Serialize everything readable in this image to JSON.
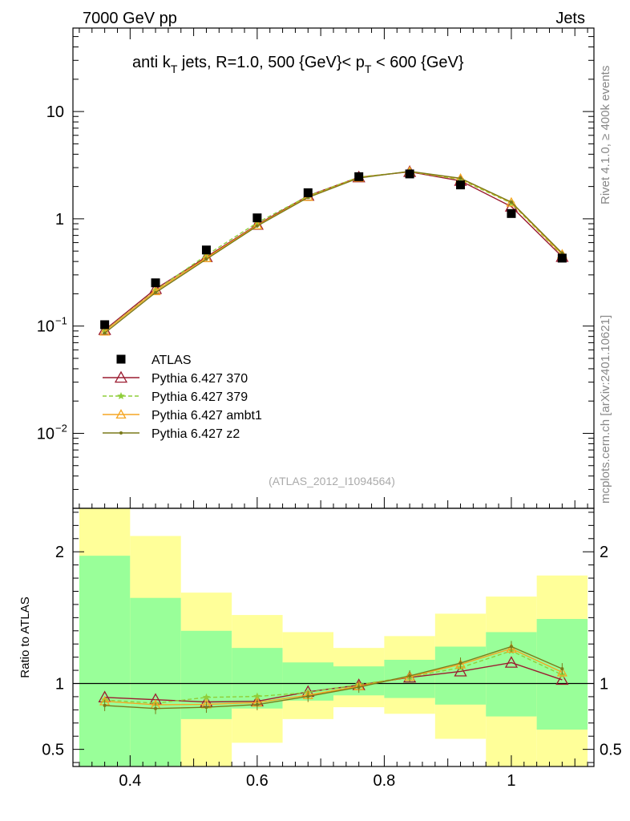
{
  "header": {
    "left": "7000 GeV pp",
    "right": "Jets"
  },
  "title": {
    "main": "anti k",
    "main_sub": "T",
    "mid": " jets, R=1.0,  500 {GeV}< p",
    "mid_sub": "T",
    "tail": " < 600 {GeV}"
  },
  "side_text": {
    "rivet": "Rivet 4.1.0, ≥ 400k events",
    "mcplots": "mcplots.cern.ch [arXiv:2401.10621]"
  },
  "analysis_label": "(ATLAS_2012_I1094564)",
  "colors": {
    "atlas": "#000000",
    "p370": "#9b1b30",
    "p379": "#8fce3a",
    "ambt1": "#f5a623",
    "z2": "#7a7a1a",
    "band_inner": "#99ff99",
    "band_outer": "#ffff99"
  },
  "chart_data": [
    {
      "type": "scatter",
      "scale": "log",
      "ylim": [
        0.002,
        60
      ],
      "xlim": [
        0.31,
        1.13
      ],
      "y_tick_labels": [
        {
          "value": 10,
          "label": "10"
        },
        {
          "value": 1,
          "label": "1"
        },
        {
          "value": 0.1,
          "label": "10",
          "sup": "−1"
        },
        {
          "value": 0.01,
          "label": "10",
          "sup": "−2"
        }
      ],
      "x": [
        0.36,
        0.44,
        0.52,
        0.6,
        0.68,
        0.76,
        0.84,
        0.92,
        1.0,
        1.08
      ],
      "series": [
        {
          "key": "atlas",
          "name": "ATLAS",
          "marker": "square",
          "values": [
            0.103,
            0.253,
            0.512,
            1.02,
            1.75,
            2.47,
            2.62,
            2.07,
            1.12,
            0.43
          ]
        },
        {
          "key": "p370",
          "name": "Pythia 6.427 370",
          "marker": "triangle",
          "values": [
            0.092,
            0.222,
            0.44,
            0.882,
            1.64,
            2.44,
            2.74,
            2.26,
            1.3,
            0.442
          ]
        },
        {
          "key": "p379",
          "name": "Pythia 6.427 379",
          "marker": "star",
          "dashed": true,
          "values": [
            0.09,
            0.215,
            0.458,
            0.919,
            1.63,
            2.45,
            2.75,
            2.32,
            1.4,
            0.458
          ]
        },
        {
          "key": "ambt1",
          "name": "Pythia 6.427 ambt1",
          "marker": "triangle-small",
          "values": [
            0.089,
            0.212,
            0.431,
            0.87,
            1.6,
            2.42,
            2.76,
            2.37,
            1.42,
            0.466
          ]
        },
        {
          "key": "z2",
          "name": "Pythia 6.427 z2",
          "marker": "dot",
          "values": [
            0.086,
            0.205,
            0.42,
            0.856,
            1.58,
            2.4,
            2.77,
            2.39,
            1.43,
            0.478
          ]
        }
      ]
    },
    {
      "type": "line",
      "ylabel": "Ratio to ATLAS",
      "ylim": [
        0.37,
        2.33
      ],
      "xlim": [
        0.31,
        1.13
      ],
      "y_tick_labels": [
        {
          "value": 2,
          "label": "2"
        },
        {
          "value": 1,
          "label": "1"
        },
        {
          "value": 0.5,
          "label": "0.5"
        }
      ],
      "x_tick_labels": [
        {
          "value": 0.4,
          "label": "0.4"
        },
        {
          "value": 0.6,
          "label": "0.6"
        },
        {
          "value": 0.8,
          "label": "0.8"
        },
        {
          "value": 1.0,
          "label": "1"
        }
      ],
      "bands": [
        {
          "x0": 0.32,
          "x1": 0.4,
          "in_lo": 0.3,
          "in_hi": 1.97,
          "out_lo": 0.3,
          "out_hi": 2.4
        },
        {
          "x0": 0.4,
          "x1": 0.48,
          "in_lo": 0.3,
          "in_hi": 1.65,
          "out_lo": 0.3,
          "out_hi": 2.12
        },
        {
          "x0": 0.48,
          "x1": 0.56,
          "in_lo": 0.73,
          "in_hi": 1.4,
          "out_lo": 0.3,
          "out_hi": 1.69
        },
        {
          "x0": 0.56,
          "x1": 0.64,
          "in_lo": 0.81,
          "in_hi": 1.27,
          "out_lo": 0.55,
          "out_hi": 1.52
        },
        {
          "x0": 0.64,
          "x1": 0.72,
          "in_lo": 0.87,
          "in_hi": 1.16,
          "out_lo": 0.73,
          "out_hi": 1.39
        },
        {
          "x0": 0.72,
          "x1": 0.8,
          "in_lo": 0.91,
          "in_hi": 1.13,
          "out_lo": 0.82,
          "out_hi": 1.27
        },
        {
          "x0": 0.8,
          "x1": 0.88,
          "in_lo": 0.89,
          "in_hi": 1.18,
          "out_lo": 0.77,
          "out_hi": 1.36
        },
        {
          "x0": 0.88,
          "x1": 0.96,
          "in_lo": 0.84,
          "in_hi": 1.28,
          "out_lo": 0.58,
          "out_hi": 1.53
        },
        {
          "x0": 0.96,
          "x1": 1.04,
          "in_lo": 0.75,
          "in_hi": 1.39,
          "out_lo": 0.3,
          "out_hi": 1.66
        },
        {
          "x0": 1.04,
          "x1": 1.12,
          "in_lo": 0.65,
          "in_hi": 1.49,
          "out_lo": 0.3,
          "out_hi": 1.82
        }
      ],
      "x": [
        0.36,
        0.44,
        0.52,
        0.6,
        0.68,
        0.76,
        0.84,
        0.92,
        1.0,
        1.08
      ],
      "series": [
        {
          "key": "p370",
          "values": [
            0.895,
            0.877,
            0.86,
            0.865,
            0.937,
            0.988,
            1.046,
            1.092,
            1.158,
            1.028
          ]
        },
        {
          "key": "p379",
          "values": [
            0.875,
            0.85,
            0.895,
            0.902,
            0.932,
            0.992,
            1.05,
            1.12,
            1.248,
            1.065
          ]
        },
        {
          "key": "ambt1",
          "values": [
            0.865,
            0.838,
            0.842,
            0.855,
            0.912,
            0.98,
            1.052,
            1.145,
            1.265,
            1.085
          ]
        },
        {
          "key": "z2",
          "values": [
            0.833,
            0.81,
            0.82,
            0.84,
            0.902,
            0.972,
            1.058,
            1.155,
            1.28,
            1.112
          ]
        }
      ]
    }
  ]
}
